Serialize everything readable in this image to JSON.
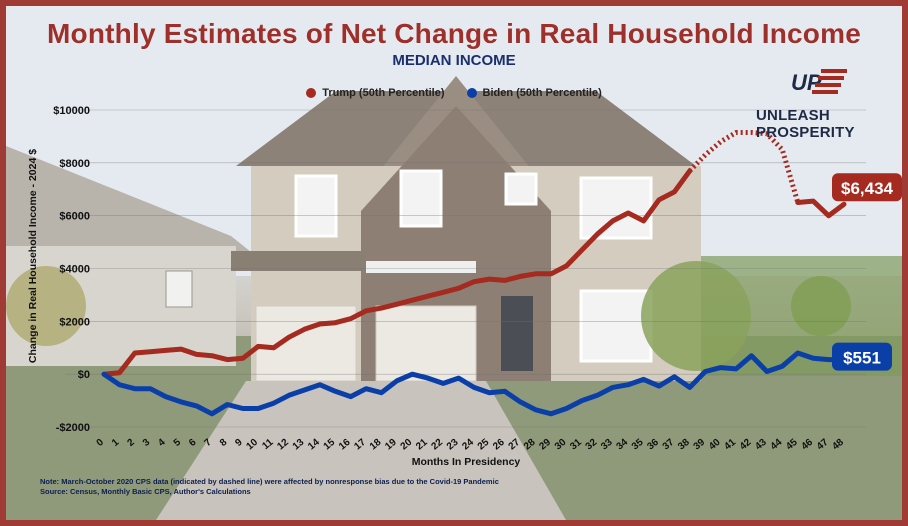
{
  "title": "Monthly Estimates of Net Change in Real Household Income",
  "subtitle": "MEDIAN INCOME",
  "brand": {
    "name": "UNLEASH PROSPERITY",
    "logo_text": "UP"
  },
  "note_line1": "Note: March-October 2020 CPS data (indicated by dashed line) were affected by nonresponse bias due to the Covid-19 Pandemic",
  "note_line2": "Source: Census, Monthly Basic CPS, Author's Calculations",
  "colors": {
    "trump": "#a52a1f",
    "biden": "#0b3fa8",
    "frame": "#9f3b34"
  },
  "chart_data": {
    "type": "line",
    "xlabel": "Months In Presidency",
    "ylabel": "Change in Real Household Income - 2024 $",
    "ylim": [
      -2000,
      10000
    ],
    "xlim": [
      0,
      48
    ],
    "yticks": [
      -2000,
      0,
      2000,
      4000,
      6000,
      8000,
      10000
    ],
    "ytick_labels": [
      "-$2000",
      "$0",
      "$2000",
      "$4000",
      "$6000",
      "$8000",
      "$10000"
    ],
    "x": [
      0,
      1,
      2,
      3,
      4,
      5,
      6,
      7,
      8,
      9,
      10,
      11,
      12,
      13,
      14,
      15,
      16,
      17,
      18,
      19,
      20,
      21,
      22,
      23,
      24,
      25,
      26,
      27,
      28,
      29,
      30,
      31,
      32,
      33,
      34,
      35,
      36,
      37,
      38,
      39,
      40,
      41,
      42,
      43,
      44,
      45,
      46,
      47,
      48
    ],
    "grid": true,
    "legend_position": "top",
    "series": [
      {
        "name": "Trump (50th Percentile)",
        "color": "#a52a1f",
        "values": [
          0,
          50,
          800,
          850,
          900,
          950,
          750,
          700,
          550,
          600,
          1050,
          1000,
          1400,
          1700,
          1900,
          1950,
          2100,
          2400,
          2500,
          2650,
          2800,
          2950,
          3100,
          3250,
          3500,
          3600,
          3550,
          3700,
          3800,
          3800,
          4100,
          4700,
          5300,
          5800,
          6100,
          5800,
          6600,
          6900,
          7700,
          8300,
          8800,
          9150,
          9150,
          9100,
          8500,
          6500,
          6550,
          6000,
          6434
        ],
        "dashed_from_x": 38,
        "dashed_to_x": 45,
        "end_label": "$6,434"
      },
      {
        "name": "Biden (50th Percentile)",
        "color": "#0b3fa8",
        "values": [
          0,
          -400,
          -550,
          -550,
          -850,
          -1050,
          -1200,
          -1500,
          -1150,
          -1300,
          -1300,
          -1100,
          -800,
          -600,
          -400,
          -650,
          -850,
          -550,
          -700,
          -250,
          0,
          -150,
          -350,
          -150,
          -500,
          -700,
          -650,
          -1050,
          -1350,
          -1500,
          -1300,
          -1000,
          -800,
          -500,
          -400,
          -200,
          -450,
          -100,
          -500,
          100,
          250,
          200,
          700,
          100,
          300,
          800,
          600,
          551,
          551
        ],
        "end_label": "$551"
      }
    ]
  }
}
